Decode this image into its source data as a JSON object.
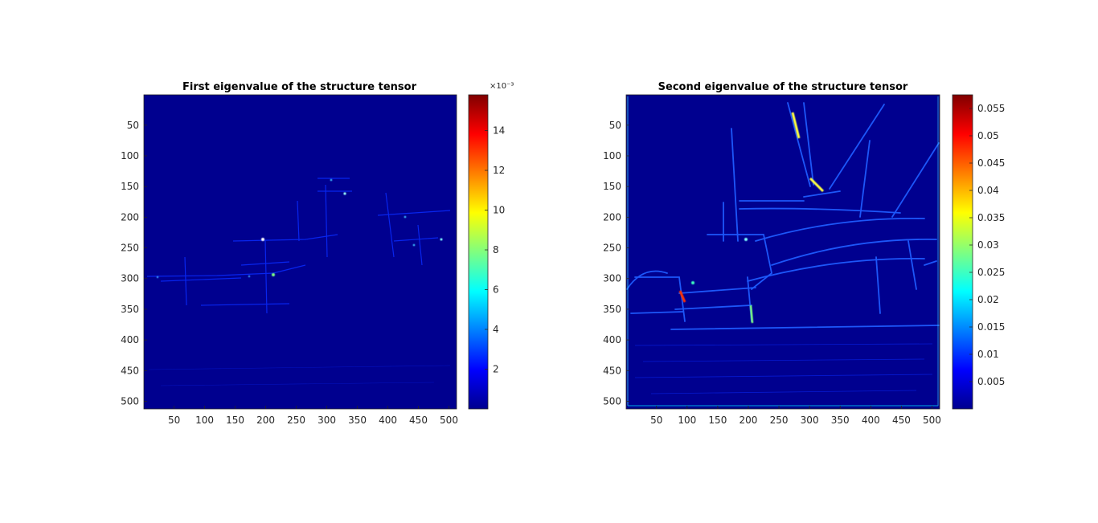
{
  "chart_data": [
    {
      "type": "heatmap",
      "title": "First eigenvalue of the structure tensor",
      "xlabel": "",
      "ylabel": "",
      "xlim": [
        1,
        512
      ],
      "ylim": [
        1,
        512
      ],
      "y_direction": "reversed",
      "x_ticks": [
        50,
        100,
        150,
        200,
        250,
        300,
        350,
        400,
        450,
        500
      ],
      "y_ticks": [
        50,
        100,
        150,
        200,
        250,
        300,
        350,
        400,
        450,
        500
      ],
      "colormap": "jet",
      "colorbar": {
        "range": [
          0,
          15.8
        ],
        "ticks": [
          2,
          4,
          6,
          8,
          10,
          12,
          14
        ],
        "tick_labels": [
          "2",
          "4",
          "6",
          "8",
          "10",
          "12",
          "14"
        ],
        "exponent_label": "×10⁻³",
        "position": "right"
      },
      "image_content": "sparse edge responses of a harbour boat scene; most values near zero"
    },
    {
      "type": "heatmap",
      "title": "Second eigenvalue of the structure tensor",
      "xlabel": "",
      "ylabel": "",
      "xlim": [
        1,
        512
      ],
      "ylim": [
        1,
        512
      ],
      "y_direction": "reversed",
      "x_ticks": [
        50,
        100,
        150,
        200,
        250,
        300,
        350,
        400,
        450,
        500
      ],
      "y_ticks": [
        50,
        100,
        150,
        200,
        250,
        300,
        350,
        400,
        450,
        500
      ],
      "colormap": "jet",
      "colorbar": {
        "range": [
          0,
          0.0575
        ],
        "ticks": [
          0.005,
          0.01,
          0.015,
          0.02,
          0.025,
          0.03,
          0.035,
          0.04,
          0.045,
          0.05,
          0.055
        ],
        "tick_labels": [
          "0.005",
          "0.01",
          "0.015",
          "0.02",
          "0.025",
          "0.03",
          "0.035",
          "0.04",
          "0.045",
          "0.05",
          "0.055"
        ],
        "exponent_label": "",
        "position": "right"
      },
      "image_content": "strong edge outlines of a fishing boat with masts and hull; brightest near mast tops and bow"
    }
  ]
}
